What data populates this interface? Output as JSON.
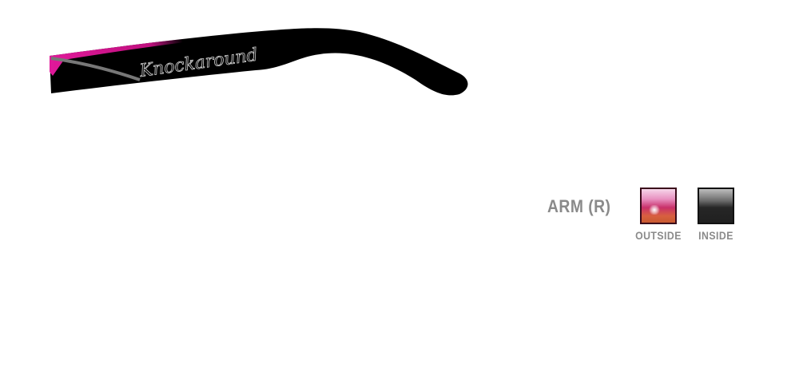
{
  "product": {
    "logo_text": "Knockaround",
    "frame_color": "#000000",
    "accent_color": "#e0199a"
  },
  "part": {
    "label": "ARM (R)",
    "options": [
      {
        "caption": "OUTSIDE",
        "swatch": "pink-orange-glitter"
      },
      {
        "caption": "INSIDE",
        "swatch": "black-gloss"
      }
    ]
  }
}
